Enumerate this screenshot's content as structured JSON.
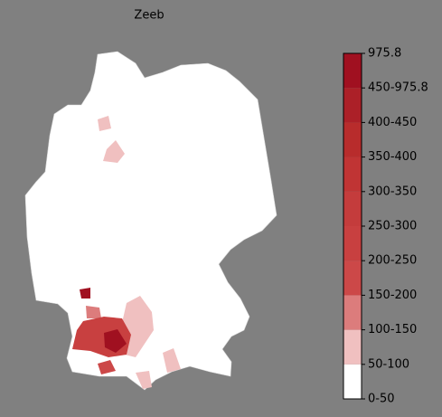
{
  "map": {
    "title": "Zeeb",
    "legend": {
      "labels": [
        "0-50",
        "50-100",
        "100-150",
        "150-200",
        "200-250",
        "250-300",
        "300-350",
        "350-400",
        "400-450",
        "450-975.8",
        "975.8"
      ],
      "colors": [
        "#ffffff",
        "#f0c0c0",
        "#dc7c7c",
        "#cc4848",
        "#c84040",
        "#c43c3c",
        "#c03434",
        "#b82c2c",
        "#ac2028",
        "#a01020"
      ]
    }
  }
}
